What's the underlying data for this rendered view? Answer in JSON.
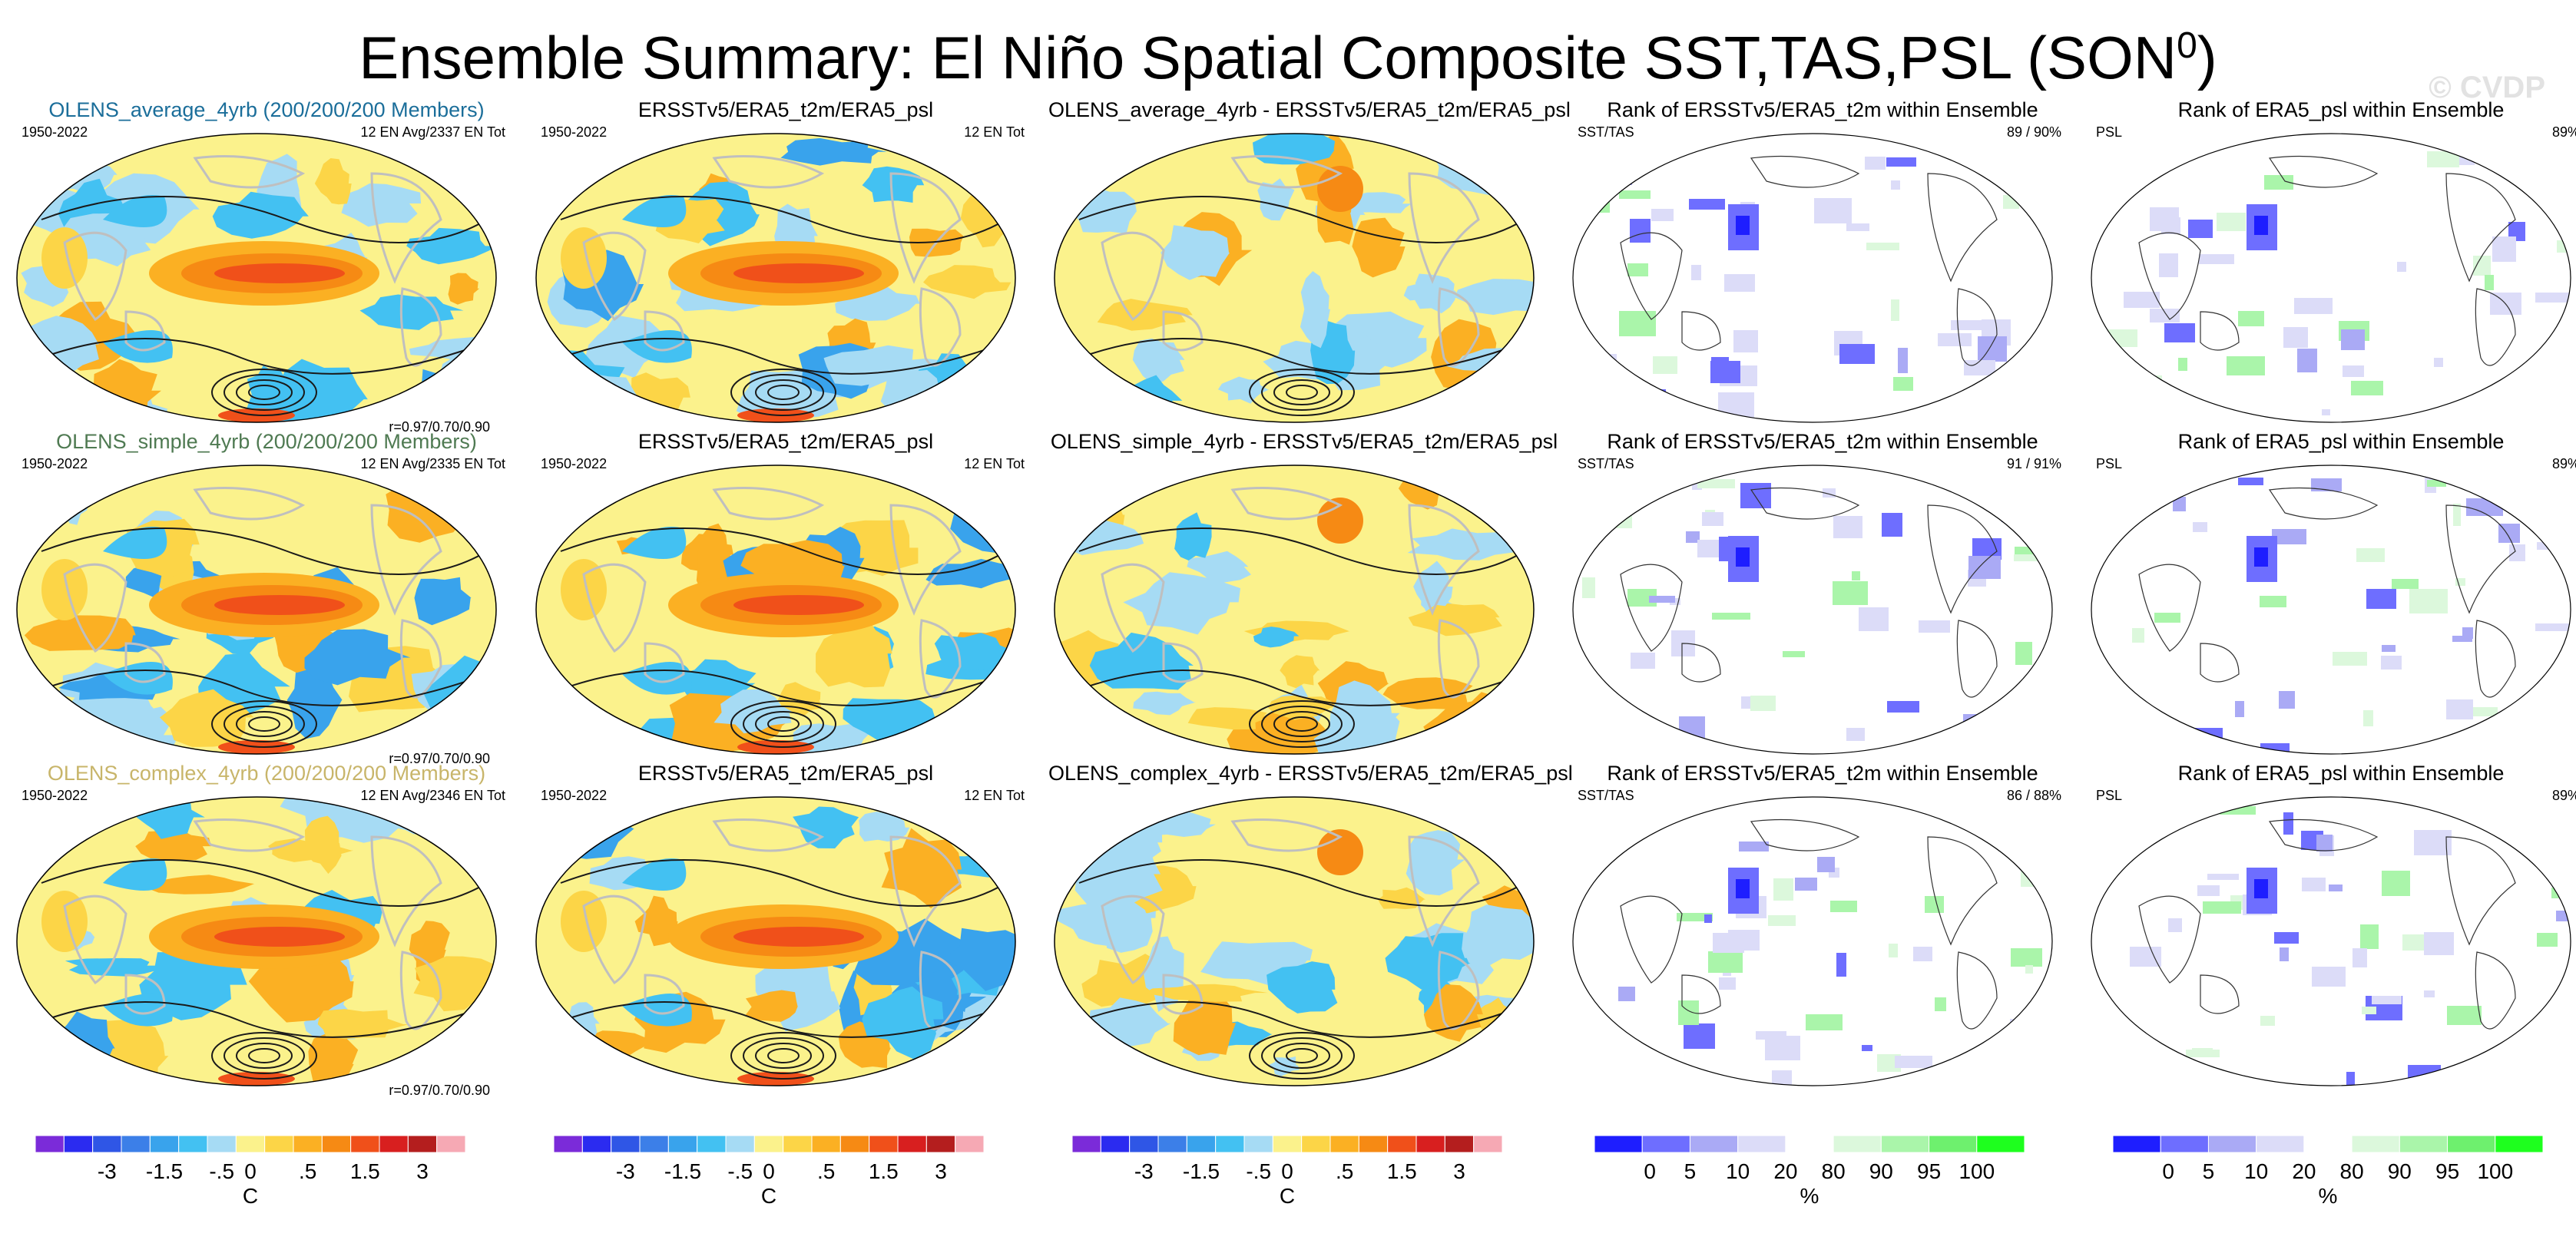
{
  "header": {
    "title": "Ensemble Summary: El Niño Spatial Composite SST,TAS,PSL (SON",
    "title_sup": "0",
    "title_close": ")",
    "watermark": "© CVDP"
  },
  "colors": {
    "ocean_bg": "#fbf28c",
    "land_line": "#bfbfbf",
    "contour": "#1a1a1a"
  },
  "chart_data": [
    {
      "type": "heatmap",
      "title": "OLENS_average_4yrb (200/200/200 Members)",
      "title_color": "#1b6e9a",
      "left_label": "1950-2022",
      "right_label_1": "12 EN Avg/2337 EN Tot",
      "right_label_2": "",
      "corr_label": "r=0.97/0.70/0.90",
      "field": "composite",
      "variant": 0
    },
    {
      "type": "heatmap",
      "title": "ERSSTv5/ERA5_t2m/ERA5_psl",
      "title_color": "#000000",
      "left_label": "1950-2022",
      "right_label_1": "12 EN Tot",
      "right_label_2": "",
      "corr_label": "",
      "field": "composite",
      "variant": 1
    },
    {
      "type": "heatmap",
      "title": "OLENS_average_4yrb - ERSSTv5/ERA5_t2m/ERA5_psl",
      "title_color": "#000000",
      "left_label": "",
      "right_label_1": "",
      "right_label_2": "",
      "corr_label": "",
      "field": "difference",
      "variant": 2
    },
    {
      "type": "heatmap",
      "title": "Rank of ERSSTv5/ERA5_t2m within Ensemble",
      "title_color": "#000000",
      "left_label": "SST/TAS",
      "right_label_1": "89 /  90%",
      "right_label_2": "",
      "corr_label": "",
      "field": "rank",
      "variant": 3
    },
    {
      "type": "heatmap",
      "title": "Rank of ERA5_psl within Ensemble",
      "title_color": "#000000",
      "left_label": "PSL",
      "right_label_1": "89%",
      "right_label_2": "",
      "corr_label": "",
      "field": "rank",
      "variant": 4
    },
    {
      "type": "heatmap",
      "title": "OLENS_simple_4yrb (200/200/200 Members)",
      "title_color": "#4f7a52",
      "left_label": "1950-2022",
      "right_label_1": "12 EN Avg/2335 EN Tot",
      "right_label_2": "",
      "corr_label": "r=0.97/0.70/0.90",
      "field": "composite",
      "variant": 5
    },
    {
      "type": "heatmap",
      "title": "ERSSTv5/ERA5_t2m/ERA5_psl",
      "title_color": "#000000",
      "left_label": "1950-2022",
      "right_label_1": "12 EN Tot",
      "right_label_2": "",
      "corr_label": "",
      "field": "composite",
      "variant": 6
    },
    {
      "type": "heatmap",
      "title": "OLENS_simple_4yrb - ERSSTv5/ERA5_t2m/ERA5_psl",
      "title_color": "#000000",
      "left_label": "",
      "right_label_1": "",
      "right_label_2": "",
      "corr_label": "",
      "field": "difference",
      "variant": 7
    },
    {
      "type": "heatmap",
      "title": "Rank of ERSSTv5/ERA5_t2m within Ensemble",
      "title_color": "#000000",
      "left_label": "SST/TAS",
      "right_label_1": "91 /  91%",
      "right_label_2": "",
      "corr_label": "",
      "field": "rank",
      "variant": 8
    },
    {
      "type": "heatmap",
      "title": "Rank of ERA5_psl within Ensemble",
      "title_color": "#000000",
      "left_label": "PSL",
      "right_label_1": "89%",
      "right_label_2": "",
      "corr_label": "",
      "field": "rank",
      "variant": 9
    },
    {
      "type": "heatmap",
      "title": "OLENS_complex_4yrb (200/200/200 Members)",
      "title_color": "#c8b56a",
      "left_label": "1950-2022",
      "right_label_1": "12 EN Avg/2346 EN Tot",
      "right_label_2": "",
      "corr_label": "r=0.97/0.70/0.90",
      "field": "composite",
      "variant": 10
    },
    {
      "type": "heatmap",
      "title": "ERSSTv5/ERA5_t2m/ERA5_psl",
      "title_color": "#000000",
      "left_label": "1950-2022",
      "right_label_1": "12 EN Tot",
      "right_label_2": "",
      "corr_label": "",
      "field": "composite",
      "variant": 11
    },
    {
      "type": "heatmap",
      "title": "OLENS_complex_4yrb - ERSSTv5/ERA5_t2m/ERA5_psl",
      "title_color": "#000000",
      "left_label": "",
      "right_label_1": "",
      "right_label_2": "",
      "corr_label": "",
      "field": "difference",
      "variant": 12
    },
    {
      "type": "heatmap",
      "title": "Rank of ERSSTv5/ERA5_t2m within Ensemble",
      "title_color": "#000000",
      "left_label": "SST/TAS",
      "right_label_1": "86 /  88%",
      "right_label_2": "",
      "corr_label": "",
      "field": "rank",
      "variant": 13
    },
    {
      "type": "heatmap",
      "title": "Rank of ERA5_psl within Ensemble",
      "title_color": "#000000",
      "left_label": "PSL",
      "right_label_1": "89%",
      "right_label_2": "",
      "corr_label": "",
      "field": "rank",
      "variant": 14
    }
  ],
  "colorbars": {
    "temperature": {
      "units": "C",
      "colors": [
        "#7b2bd9",
        "#2b2bf0",
        "#2f56e6",
        "#3c7fe8",
        "#39a3ec",
        "#43c1f2",
        "#a6dbf4",
        "#fbf28c",
        "#fcd547",
        "#fbb023",
        "#f68a14",
        "#f0501a",
        "#d81f1f",
        "#b41e1e",
        "#f6a9b4"
      ],
      "tick_labels": [
        "-3",
        "-1.5",
        "-.5",
        "0",
        ".5",
        "1.5",
        "3"
      ]
    },
    "rank": {
      "units": "%",
      "colors": [
        "#1e1eff",
        "#6e6eff",
        "#aaaaf5",
        "#dcdcf8",
        "#ffffff",
        "#dcf8dc",
        "#aaf5aa",
        "#6ef06e",
        "#1eff1e"
      ],
      "tick_labels": [
        "0",
        "5",
        "10",
        "20",
        "80",
        "90",
        "95",
        "100"
      ]
    }
  }
}
